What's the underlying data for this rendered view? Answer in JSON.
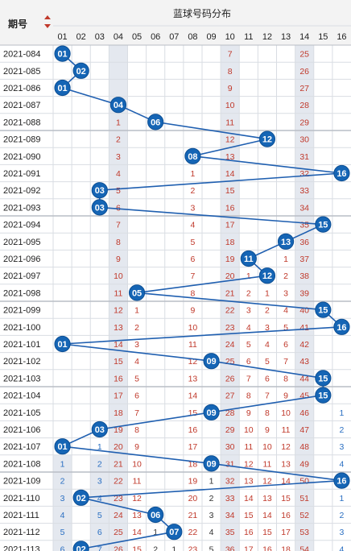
{
  "header": {
    "period_label": "期号",
    "title": "蓝球号码分布",
    "columns": [
      "01",
      "02",
      "03",
      "04",
      "05",
      "06",
      "07",
      "08",
      "09",
      "10",
      "11",
      "12",
      "13",
      "14",
      "15",
      "16"
    ]
  },
  "colors": {
    "ball": "#1565b5",
    "ball_border": "#0d4f94",
    "line": "#1f5fb0",
    "miss_text": "#c0392b",
    "gray_text": "#333333",
    "blue_text": "#2a6fc2",
    "shaded_col": "#e4e8ef",
    "grid": "#d9dde3",
    "header_bg": "#f3f3f3",
    "group_line": "#b9bec6"
  },
  "shaded_columns": [
    "04",
    "10",
    "14"
  ],
  "chart_data": {
    "type": "table",
    "title": "蓝球号码分布",
    "columns": [
      "01",
      "02",
      "03",
      "04",
      "05",
      "06",
      "07",
      "08",
      "09",
      "10",
      "11",
      "12",
      "13",
      "14",
      "15",
      "16"
    ],
    "rows": [
      {
        "period": "2021-084",
        "cells": [
          "",
          "",
          "",
          "",
          "",
          "",
          "",
          "",
          "",
          "7",
          "",
          "",
          "",
          "25",
          "",
          ""
        ],
        "ball": "01"
      },
      {
        "period": "2021-085",
        "cells": [
          "",
          "",
          "",
          "",
          "",
          "",
          "",
          "",
          "",
          "8",
          "",
          "",
          "",
          "26",
          "",
          ""
        ],
        "ball": "02"
      },
      {
        "period": "2021-086",
        "cells": [
          "",
          "",
          "",
          "",
          "",
          "",
          "",
          "",
          "",
          "9",
          "",
          "",
          "",
          "27",
          "",
          ""
        ],
        "ball": "01"
      },
      {
        "period": "2021-087",
        "cells": [
          "",
          "",
          "",
          "",
          "",
          "",
          "",
          "",
          "",
          "10",
          "",
          "",
          "",
          "28",
          "",
          ""
        ],
        "ball": "04"
      },
      {
        "period": "2021-088",
        "cells": [
          "",
          "",
          "",
          "1",
          "",
          "",
          "",
          "",
          "",
          "11",
          "",
          "",
          "",
          "29",
          "",
          ""
        ],
        "ball": "06"
      },
      {
        "period": "2021-089",
        "cells": [
          "",
          "",
          "",
          "2",
          "",
          "",
          "",
          "",
          "",
          "12",
          "",
          "",
          "",
          "30",
          "",
          ""
        ],
        "ball": "12"
      },
      {
        "period": "2021-090",
        "cells": [
          "",
          "",
          "",
          "3",
          "",
          "",
          "",
          "",
          "",
          "13",
          "",
          "",
          "",
          "31",
          "",
          ""
        ],
        "ball": "08"
      },
      {
        "period": "2021-091",
        "cells": [
          "",
          "",
          "",
          "4",
          "",
          "",
          "",
          "1",
          "",
          "14",
          "",
          "",
          "",
          "32",
          "",
          ""
        ],
        "ball": "16"
      },
      {
        "period": "2021-092",
        "cells": [
          "",
          "",
          "",
          "5",
          "",
          "",
          "",
          "2",
          "",
          "15",
          "",
          "",
          "",
          "33",
          "",
          ""
        ],
        "ball": "03"
      },
      {
        "period": "2021-093",
        "cells": [
          "",
          "",
          "",
          "6",
          "",
          "",
          "",
          "3",
          "",
          "16",
          "",
          "",
          "",
          "34",
          "",
          ""
        ],
        "ball": "03"
      },
      {
        "period": "2021-094",
        "cells": [
          "",
          "",
          "",
          "7",
          "",
          "",
          "",
          "4",
          "",
          "17",
          "",
          "",
          "",
          "35",
          "",
          ""
        ],
        "ball": "15"
      },
      {
        "period": "2021-095",
        "cells": [
          "",
          "",
          "",
          "8",
          "",
          "",
          "",
          "5",
          "",
          "18",
          "",
          "",
          "",
          "36",
          "",
          ""
        ],
        "ball": "13"
      },
      {
        "period": "2021-096",
        "cells": [
          "",
          "",
          "",
          "9",
          "",
          "",
          "",
          "6",
          "",
          "19",
          "",
          "",
          "1",
          "37",
          "",
          ""
        ],
        "ball": "11"
      },
      {
        "period": "2021-097",
        "cells": [
          "",
          "",
          "",
          "10",
          "",
          "",
          "",
          "7",
          "",
          "20",
          "1",
          "",
          "2",
          "38",
          "",
          ""
        ],
        "ball": "12"
      },
      {
        "period": "2021-098",
        "cells": [
          "",
          "",
          "",
          "11",
          "",
          "",
          "",
          "8",
          "",
          "21",
          "2",
          "1",
          "3",
          "39",
          "",
          ""
        ],
        "ball": "05"
      },
      {
        "period": "2021-099",
        "cells": [
          "",
          "",
          "",
          "12",
          "1",
          "",
          "",
          "9",
          "",
          "22",
          "3",
          "2",
          "4",
          "40",
          "",
          ""
        ],
        "ball": "15"
      },
      {
        "period": "2021-100",
        "cells": [
          "",
          "",
          "",
          "13",
          "2",
          "",
          "",
          "10",
          "",
          "23",
          "4",
          "3",
          "5",
          "41",
          "",
          ""
        ],
        "ball": "16"
      },
      {
        "period": "2021-101",
        "cells": [
          "",
          "",
          "",
          "14",
          "3",
          "",
          "",
          "11",
          "",
          "24",
          "5",
          "4",
          "6",
          "42",
          "",
          ""
        ],
        "ball": "01"
      },
      {
        "period": "2021-102",
        "cells": [
          "",
          "",
          "",
          "15",
          "4",
          "",
          "",
          "12",
          "",
          "25",
          "6",
          "5",
          "7",
          "43",
          "",
          ""
        ],
        "ball": "09"
      },
      {
        "period": "2021-103",
        "cells": [
          "",
          "",
          "",
          "16",
          "5",
          "",
          "",
          "13",
          "",
          "26",
          "7",
          "6",
          "8",
          "44",
          "",
          ""
        ],
        "ball": "15"
      },
      {
        "period": "2021-104",
        "cells": [
          "",
          "",
          "",
          "17",
          "6",
          "",
          "",
          "14",
          "",
          "27",
          "8",
          "7",
          "9",
          "45",
          "",
          ""
        ],
        "ball": "15"
      },
      {
        "period": "2021-105",
        "cells": [
          "",
          "",
          "",
          "18",
          "7",
          "",
          "",
          "15",
          "",
          "28",
          "9",
          "8",
          "10",
          "46",
          "",
          "1"
        ],
        "ball": "09"
      },
      {
        "period": "2021-106",
        "cells": [
          "",
          "",
          "",
          "19",
          "8",
          "",
          "",
          "16",
          "",
          "29",
          "10",
          "9",
          "11",
          "47",
          "",
          "2"
        ],
        "ball": "03"
      },
      {
        "period": "2021-107",
        "cells": [
          "",
          "",
          "1",
          "20",
          "9",
          "",
          "",
          "17",
          "",
          "30",
          "11",
          "10",
          "12",
          "48",
          "",
          "3"
        ],
        "ball": "01"
      },
      {
        "period": "2021-108",
        "cells": [
          "1",
          "",
          "2",
          "21",
          "10",
          "",
          "",
          "18",
          "",
          "31",
          "12",
          "11",
          "13",
          "49",
          "",
          "4"
        ],
        "ball": "09"
      },
      {
        "period": "2021-109",
        "cells": [
          "2",
          "",
          "3",
          "22",
          "11",
          "",
          "",
          "19",
          "1",
          "32",
          "13",
          "12",
          "14",
          "50",
          "",
          ""
        ],
        "ball": "16"
      },
      {
        "period": "2021-110",
        "cells": [
          "3",
          "",
          "4",
          "23",
          "12",
          "",
          "",
          "20",
          "2",
          "33",
          "14",
          "13",
          "15",
          "51",
          "",
          "1"
        ],
        "ball": "02"
      },
      {
        "period": "2021-111",
        "cells": [
          "4",
          "",
          "5",
          "24",
          "13",
          "",
          "",
          "21",
          "3",
          "34",
          "15",
          "14",
          "16",
          "52",
          "",
          "2"
        ],
        "ball": "06"
      },
      {
        "period": "2021-112",
        "cells": [
          "5",
          "",
          "6",
          "25",
          "14",
          "1",
          "",
          "22",
          "4",
          "35",
          "16",
          "15",
          "17",
          "53",
          "",
          "3"
        ],
        "ball": "07"
      },
      {
        "period": "2021-113",
        "cells": [
          "6",
          "",
          "7",
          "26",
          "15",
          "2",
          "1",
          "23",
          "5",
          "36",
          "17",
          "16",
          "18",
          "54",
          "",
          "4"
        ],
        "ball": "02"
      }
    ]
  }
}
